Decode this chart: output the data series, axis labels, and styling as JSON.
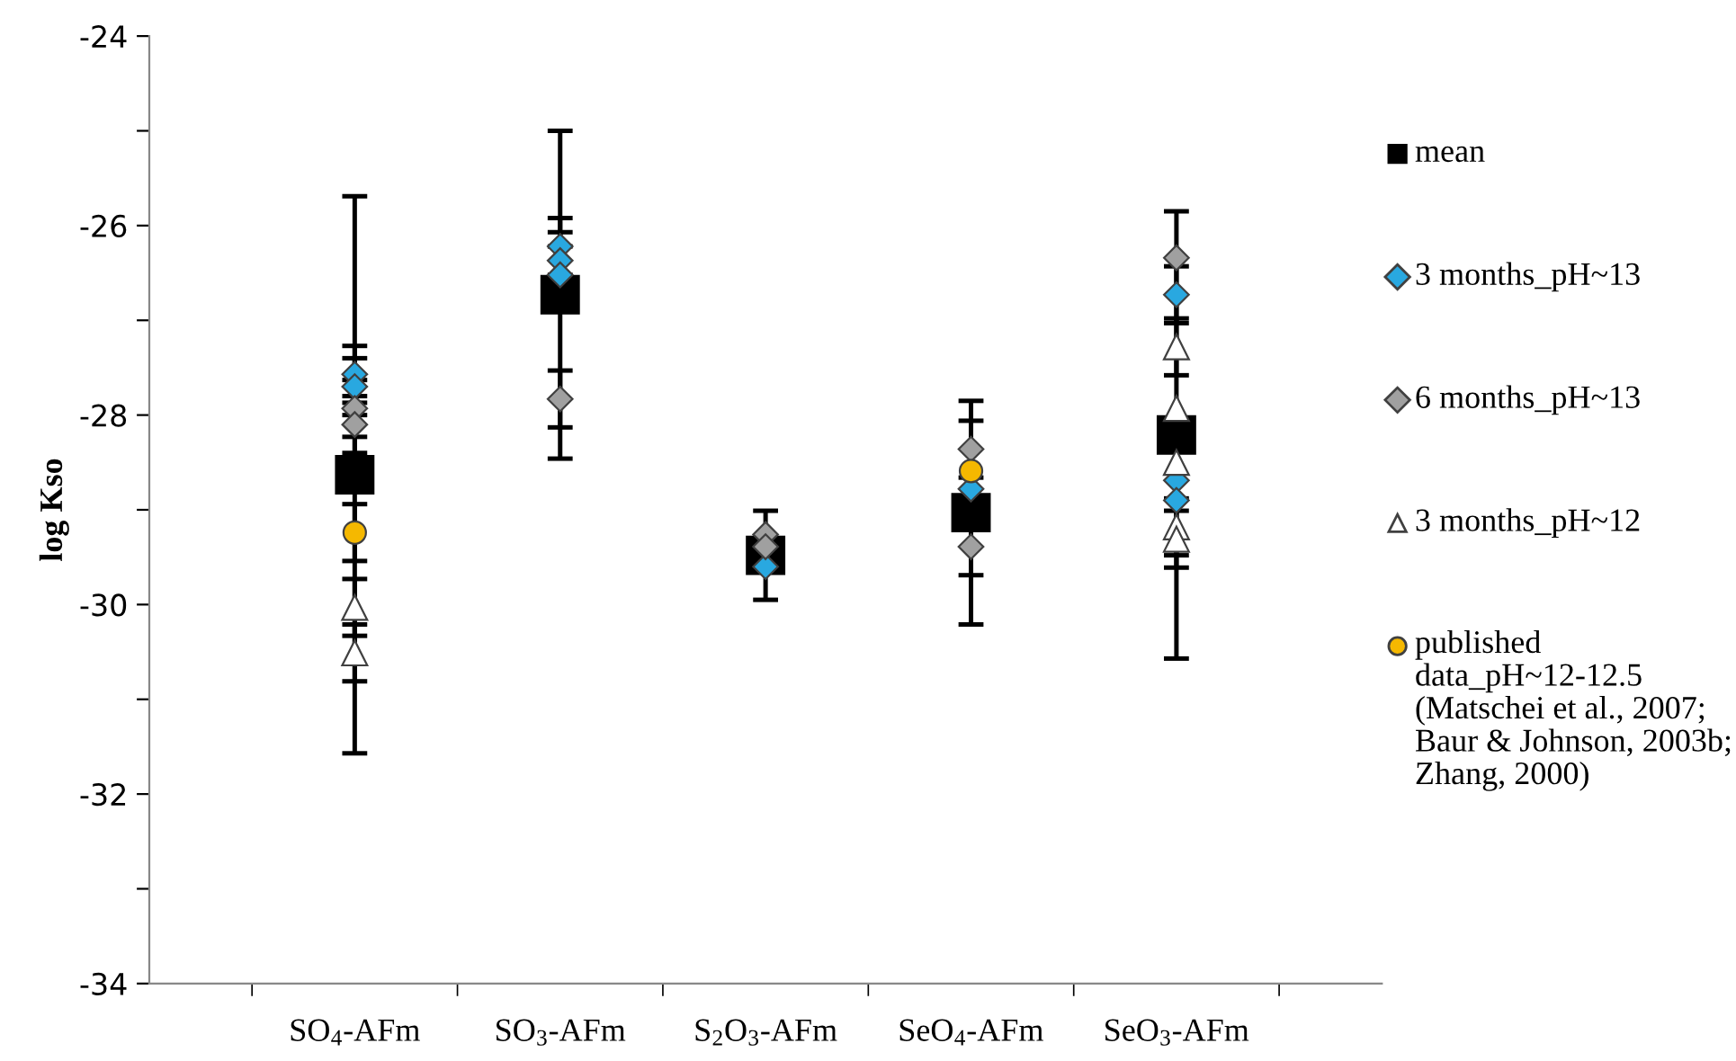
{
  "chart_data": {
    "type": "scatter",
    "ylabel": "log Kso",
    "categories": [
      "SO$_{4}$-AFm",
      "SO$_{3}$-AFm",
      "S$_{2}$O$_{3}$-AFm",
      "SeO$_{4}$-AFm",
      "SeO$_{3}$-AFm"
    ],
    "ylim": [
      -34,
      -24
    ],
    "yticks": [
      -34,
      {
        "value": -33,
        "label": null
      },
      -32,
      {
        "value": -31,
        "label": null
      },
      -30,
      {
        "value": -29,
        "label": null
      },
      -28,
      {
        "value": -27,
        "label": null
      },
      -26,
      {
        "value": -25,
        "label": null
      },
      -24
    ],
    "grid": false,
    "legend": "right",
    "series": [
      {
        "name": "mean",
        "color": "#000000",
        "marker": "square",
        "x": [
          "SO$_{4}$-AFm",
          "SO$_{3}$-AFm",
          "S$_{2}$O$_{3}$-AFm",
          "SeO$_{4}$-AFm",
          "SeO$_{3}$-AFm"
        ],
        "values": [
          -28.63,
          -26.73,
          -29.48,
          -29.03,
          -28.21
        ],
        "errors": [
          2.94,
          1.73,
          0.47,
          1.18,
          2.36
        ]
      },
      {
        "name": "3 months_pH~13",
        "color": "#29a8e0",
        "marker": "diamond",
        "x": [
          "SO$_{4}$-AFm",
          "SO$_{4}$-AFm",
          "SO$_{3}$-AFm",
          "SO$_{3}$-AFm",
          "SO$_{3}$-AFm",
          "S$_{2}$O$_{3}$-AFm",
          "SeO$_{4}$-AFm",
          "SeO$_{3}$-AFm",
          "SeO$_{3}$-AFm",
          "SeO$_{3}$-AFm"
        ],
        "values": [
          -27.57,
          -27.7,
          -26.22,
          -26.37,
          -26.52,
          -29.6,
          -28.78,
          -26.73,
          -28.69,
          -28.9
        ],
        "errors": [
          0.3,
          0.3,
          0.3,
          0.3,
          0.3,
          null,
          null,
          0.3,
          null,
          null
        ]
      },
      {
        "name": "6 months_pH~13",
        "color": "#a0a0a0",
        "marker": "diamond",
        "x": [
          "SO$_{4}$-AFm",
          "SO$_{4}$-AFm",
          "SO$_{3}$-AFm",
          "S$_{2}$O$_{3}$-AFm",
          "S$_{2}$O$_{3}$-AFm",
          "SeO$_{4}$-AFm",
          "SeO$_{4}$-AFm",
          "SeO$_{3}$-AFm"
        ],
        "values": [
          -27.93,
          -28.1,
          -27.83,
          -29.26,
          -29.39,
          -28.36,
          -29.39,
          -26.34
        ],
        "errors": [
          0.3,
          0.3,
          0.3,
          null,
          null,
          0.3,
          0.3,
          null
        ]
      },
      {
        "name": "3 months_pH~12",
        "color": "#ffffff",
        "marker": "triangle",
        "x": [
          "SO$_{4}$-AFm",
          "SO$_{4}$-AFm",
          "SeO$_{3}$-AFm",
          "SeO$_{3}$-AFm",
          "SeO$_{3}$-AFm",
          "SeO$_{3}$-AFm",
          "SeO$_{3}$-AFm"
        ],
        "values": [
          -30.03,
          -30.51,
          -27.28,
          -27.93,
          -28.5,
          -29.18,
          -29.31
        ],
        "errors": [
          0.3,
          0.3,
          0.3,
          null,
          null,
          0.3,
          0.3
        ]
      },
      {
        "name": "published data_pH~12-12.5 (Matschei et al., 2007; Baur & Johnson, 2003b; Zhang, 2000)",
        "color": "#f5b800",
        "marker": "circle",
        "x": [
          "SO$_{4}$-AFm",
          "SeO$_{4}$-AFm"
        ],
        "values": [
          -29.24,
          -28.59
        ],
        "errors": [
          0.3,
          null
        ]
      }
    ]
  }
}
